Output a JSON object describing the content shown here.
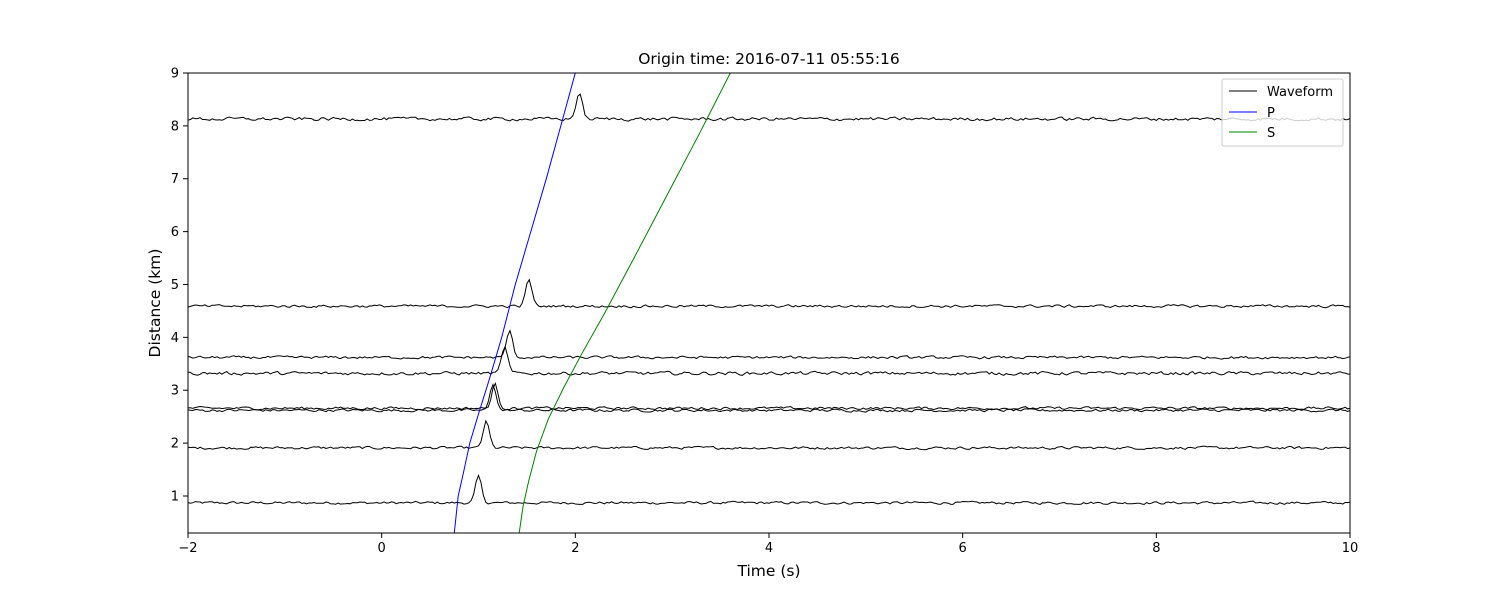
{
  "chart_data": {
    "type": "line",
    "title": "Origin time: 2016-07-11 05:55:16",
    "xlabel": "Time (s)",
    "ylabel": "Distance (km)",
    "xlim": [
      -2,
      10
    ],
    "ylim": [
      0.3,
      9.0
    ],
    "xticks": [
      -2,
      0,
      2,
      4,
      6,
      8,
      10
    ],
    "xtick_labels": [
      "−2",
      "0",
      "2",
      "4",
      "6",
      "8",
      "10"
    ],
    "yticks": [
      1,
      2,
      3,
      4,
      5,
      6,
      7,
      8,
      9
    ],
    "ytick_labels": [
      "1",
      "2",
      "3",
      "4",
      "5",
      "6",
      "7",
      "8",
      "9"
    ],
    "grid": false,
    "legend": {
      "placement": "top-right",
      "entries": [
        {
          "label": "Waveform",
          "color": "#000000"
        },
        {
          "label": "P",
          "color": "#0000ff"
        },
        {
          "label": "S",
          "color": "#008000"
        }
      ]
    },
    "waveforms": [
      {
        "distance_km": 0.87,
        "arrival_s": 0.95,
        "peak_km": 0.5,
        "noise_km": 0.04
      },
      {
        "distance_km": 1.91,
        "arrival_s": 1.03,
        "peak_km": 0.5,
        "noise_km": 0.04
      },
      {
        "distance_km": 2.62,
        "arrival_s": 1.1,
        "peak_km": 0.5,
        "noise_km": 0.04
      },
      {
        "distance_km": 2.66,
        "arrival_s": 1.12,
        "peak_km": 0.45,
        "noise_km": 0.04
      },
      {
        "distance_km": 3.32,
        "arrival_s": 1.22,
        "peak_km": 0.5,
        "noise_km": 0.05
      },
      {
        "distance_km": 3.62,
        "arrival_s": 1.27,
        "peak_km": 0.5,
        "noise_km": 0.04
      },
      {
        "distance_km": 4.59,
        "arrival_s": 1.47,
        "peak_km": 0.5,
        "noise_km": 0.04
      },
      {
        "distance_km": 8.13,
        "arrival_s": 1.99,
        "peak_km": 0.5,
        "noise_km": 0.05
      }
    ],
    "P": {
      "color": "#0000ff",
      "x": [
        0.75,
        0.79,
        0.84,
        0.91,
        1.0,
        1.11,
        1.24,
        1.38,
        1.54,
        1.7,
        1.85,
        2.0
      ],
      "y": [
        0.3,
        1.0,
        1.4,
        2.0,
        2.55,
        3.2,
        4.0,
        5.0,
        6.0,
        7.0,
        8.0,
        9.0
      ]
    },
    "S": {
      "color": "#008000",
      "x": [
        1.42,
        1.46,
        1.52,
        1.6,
        1.72,
        1.88,
        2.07,
        2.3,
        2.62,
        2.95,
        3.28,
        3.6
      ],
      "y": [
        0.3,
        0.8,
        1.3,
        1.85,
        2.45,
        3.05,
        3.7,
        4.45,
        5.55,
        6.7,
        7.85,
        9.0
      ]
    }
  }
}
